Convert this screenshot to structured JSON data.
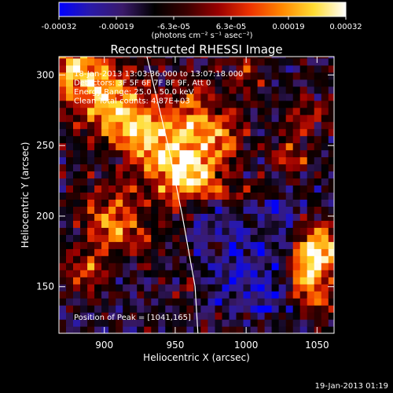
{
  "chart_data": {
    "type": "heatmap",
    "title": "Reconstructed RHESSI Image",
    "xlabel": "Heliocentric X (arcsec)",
    "ylabel": "Heliocentric Y (arcsec)",
    "xlim": [
      868,
      1062
    ],
    "ylim": [
      117,
      313
    ],
    "xticks": [
      900,
      950,
      1000,
      1050
    ],
    "yticks": [
      150,
      200,
      250,
      300
    ],
    "colorbar": {
      "min": -0.00032,
      "max": 0.00032,
      "ticks": [
        "-0.00032",
        "-0.00019",
        "-6.3e-05",
        "6.3e-05",
        "0.00019",
        "0.00032"
      ],
      "unit_label": "(photons cm⁻² s⁻¹ asec⁻²)",
      "palette": [
        "#0000ff",
        "#2a1aa8",
        "#3a1a6a",
        "#000000",
        "#3a0000",
        "#990000",
        "#ee3300",
        "#ff8800",
        "#ffdd33",
        "#ffffff"
      ]
    },
    "annotations": [
      "18-Jan-2013 13:03:36.000 to 13:07:18.000",
      "Detectors: 3F 5F 6F 7F 8F 9F, Att 0",
      "Energy Range: 25.0 - 50.0 keV",
      "Clean    Total counts: 4.87E+03"
    ],
    "peak_label": "Position of Peak = [1041,165]",
    "peak": [
      1041,
      165
    ],
    "limb": [
      [
        930,
        313
      ],
      [
        945,
        250
      ],
      [
        955,
        200
      ],
      [
        964,
        150
      ],
      [
        966,
        117
      ]
    ]
  },
  "footer": {
    "date": "19-Jan-2013 01:19"
  }
}
